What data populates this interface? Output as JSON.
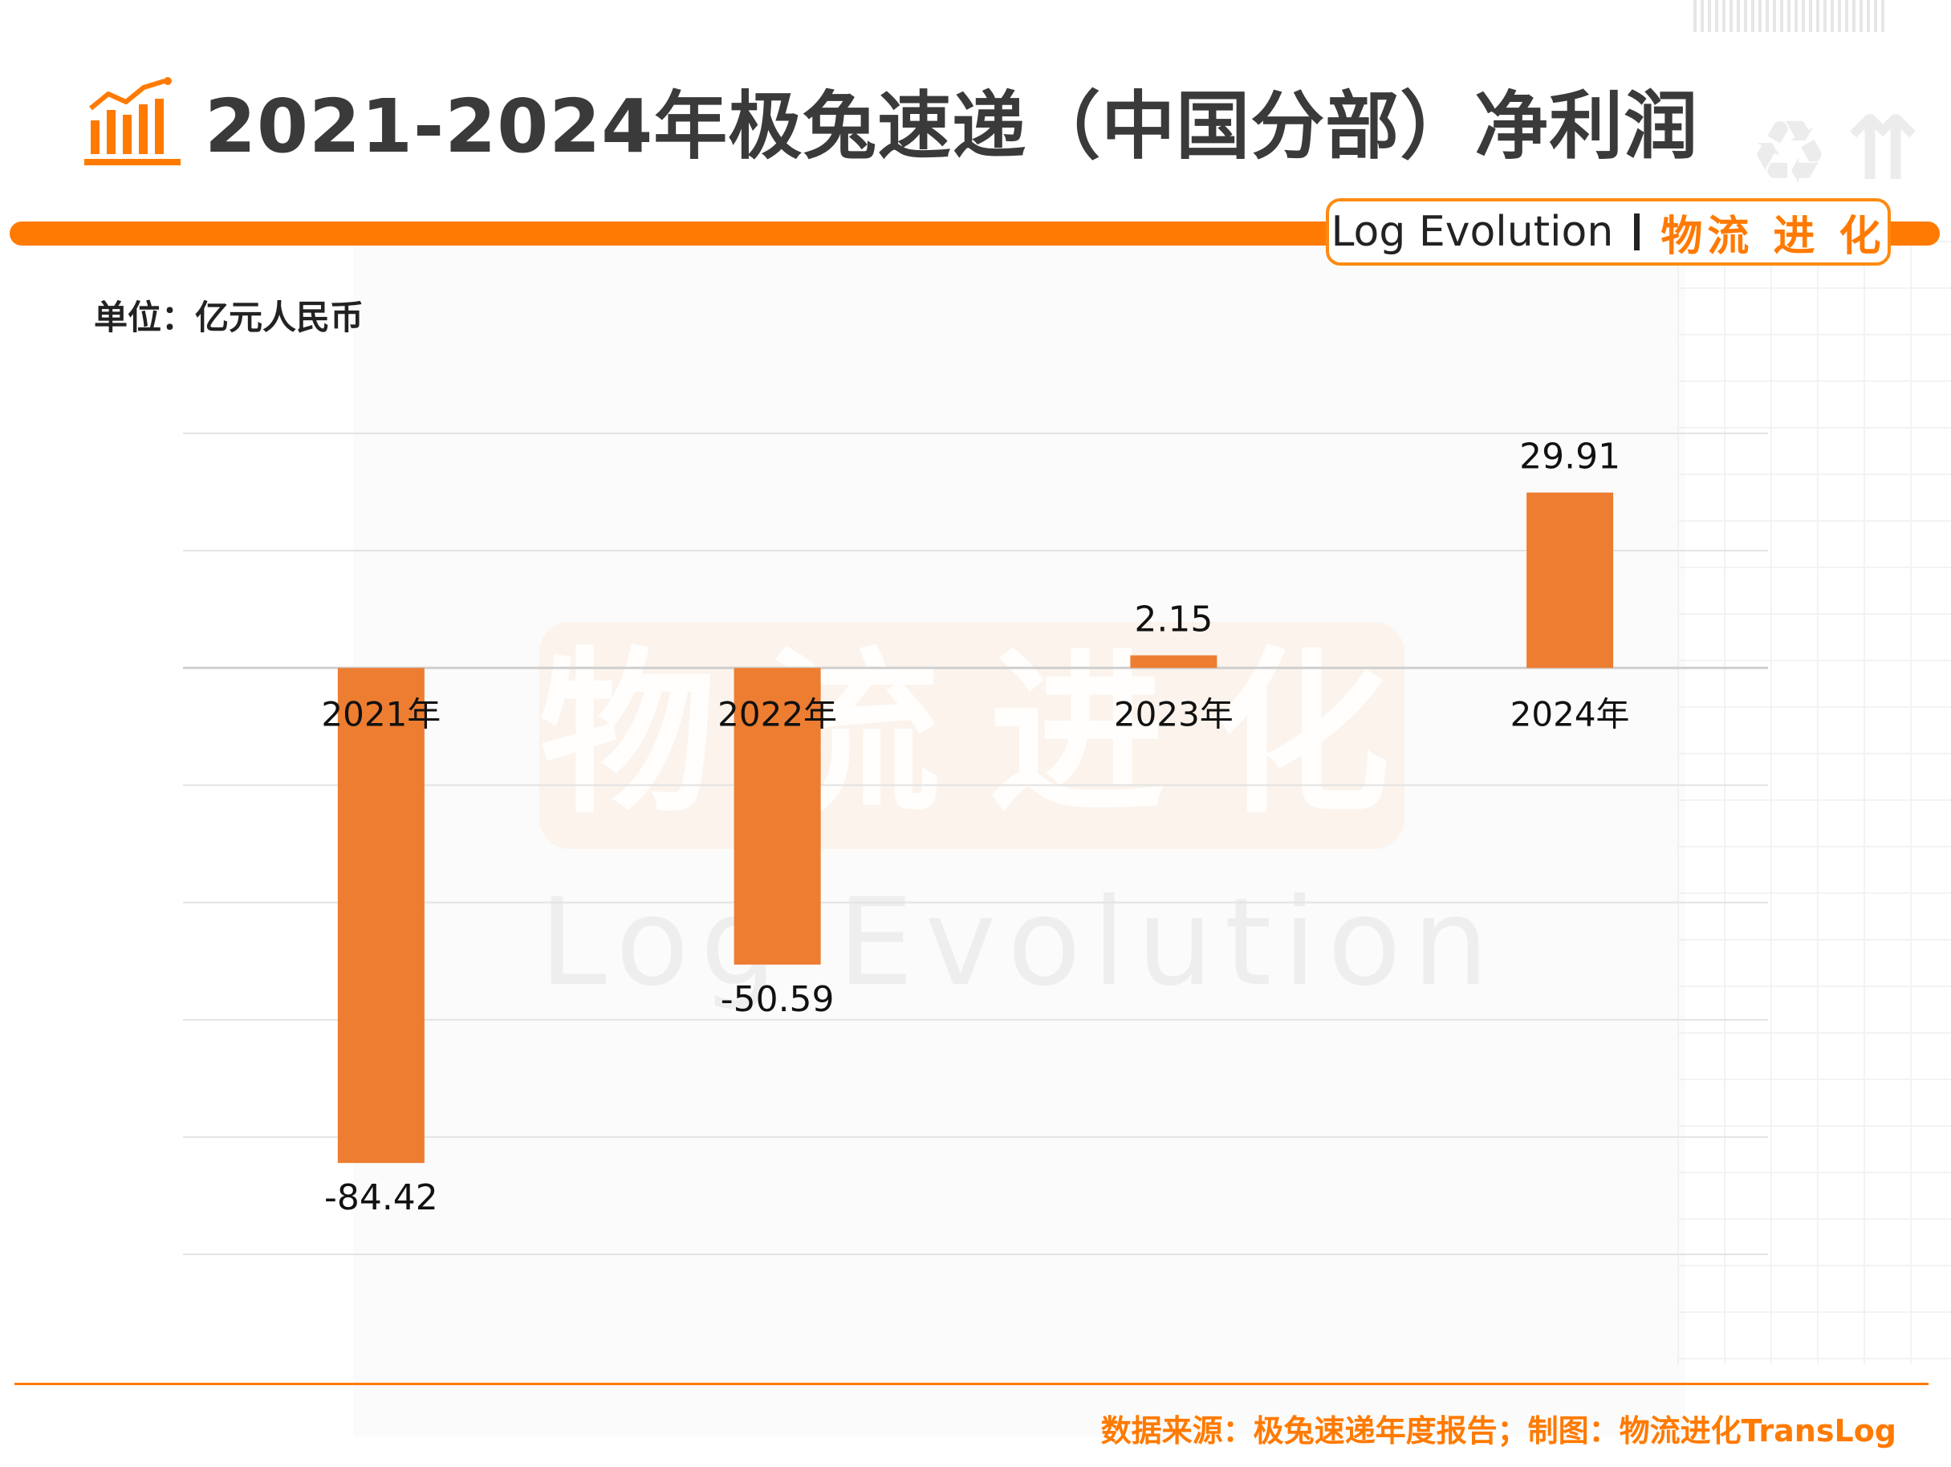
{
  "title": "2021-2024年极兔速递（中国分部）净利润",
  "brand": {
    "en": "Log Evolution",
    "cn": "物流 进 化"
  },
  "unit": "单位：亿元人民币",
  "watermark": {
    "cn": "物流进化",
    "en": "Log Evolution"
  },
  "source": "数据来源：极兔速递年度报告；制图：物流进化TransLog",
  "colors": {
    "accent": "#ff7a00",
    "bar": "#ed7d31",
    "grid": "#e3e3e3"
  },
  "chart_data": {
    "type": "bar",
    "categories": [
      "2021年",
      "2022年",
      "2023年",
      "2024年"
    ],
    "values": [
      -84.42,
      -50.59,
      2.15,
      29.91
    ],
    "value_labels": [
      "-84.42",
      "-50.59",
      "2.15",
      "29.91"
    ],
    "ylim": [
      -100,
      40
    ],
    "grid": true,
    "gridline_step": 20,
    "legend": "none"
  }
}
